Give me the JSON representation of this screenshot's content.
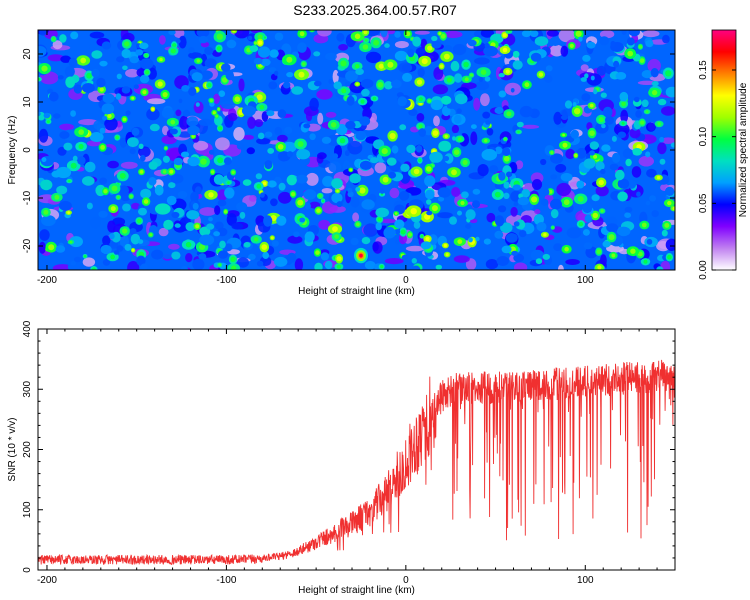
{
  "title": "S233.2025.364.00.57.R07",
  "chart_data": [
    {
      "type": "heatmap",
      "title": "S233.2025.364.00.57.R07",
      "xlabel": "Height of straight line (km)",
      "ylabel": "Frequency (Hz)",
      "xlim": [
        -205,
        150
      ],
      "ylim": [
        -25,
        25
      ],
      "xticks": [
        -200,
        -100,
        0,
        100
      ],
      "yticks": [
        -20,
        -10,
        0,
        10,
        20
      ],
      "colorbar": {
        "label": "Normalized spectral amplitude",
        "range": [
          0.0,
          0.18
        ],
        "ticks": [
          0.0,
          0.05,
          0.1,
          0.15
        ],
        "tick_labels": [
          "0.00",
          "0.05",
          "0.10",
          "0.15"
        ],
        "colors": [
          "#ffffff",
          "#c080f0",
          "#8000ff",
          "#0000ff",
          "#00a0ff",
          "#00e0c0",
          "#00ff40",
          "#a0ff00",
          "#ffff00",
          "#ff8000",
          "#ff0000",
          "#ff0080"
        ]
      },
      "description_values": {
        "typical_amplitude": 0.04,
        "peak_amplitude": 0.17,
        "peak_location": [
          -25,
          -22
        ]
      }
    },
    {
      "type": "line",
      "xlabel": "Height of straight line (km)",
      "ylabel": "SNR (10 * v/v)",
      "xlim": [
        -205,
        150
      ],
      "ylim": [
        0,
        400
      ],
      "xticks": [
        -200,
        -100,
        0,
        100
      ],
      "yticks": [
        0,
        100,
        200,
        300,
        400
      ],
      "series": [
        {
          "name": "SNR",
          "color": "#f03030",
          "trend_x": [
            -205,
            -100,
            -85,
            -70,
            -60,
            -50,
            -40,
            -30,
            -20,
            -10,
            0,
            10,
            20,
            30,
            50,
            80,
            100,
            120,
            150
          ],
          "trend_y": [
            17,
            17,
            18,
            22,
            30,
            45,
            60,
            75,
            95,
            125,
            175,
            230,
            285,
            300,
            300,
            305,
            310,
            315,
            320
          ]
        }
      ]
    }
  ]
}
